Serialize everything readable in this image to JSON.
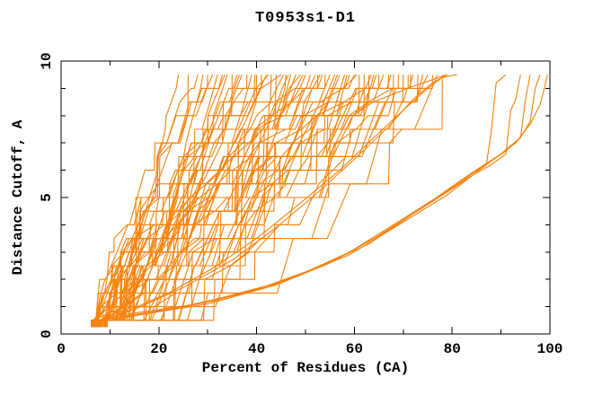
{
  "window": {
    "background": "#ffffff"
  },
  "chart_data": {
    "type": "line",
    "title": "T0953s1-D1",
    "xlabel": "Percent of Residues (CA)",
    "ylabel": "Distance Cutoff, A",
    "xlim": [
      0,
      100
    ],
    "ylim": [
      0,
      10
    ],
    "x_major_ticks": [
      0,
      20,
      40,
      60,
      80,
      100
    ],
    "x_minor_ticks": [
      10,
      30,
      50,
      70,
      90
    ],
    "y_major_ticks": [
      0,
      5,
      10
    ],
    "y_minor_ticks": [
      1,
      2,
      3,
      4,
      6,
      7,
      8,
      9
    ],
    "grid": false,
    "legend_position": "none",
    "line_color": "#f5820d",
    "axis_color": "#000000",
    "y_levels": {
      "start": 0.5,
      "end": 9.5,
      "step": 0.5
    },
    "dense_model_format": [
      "percent_at_first_cutoff",
      "percent_at_max_cutoff",
      "profile_exponent"
    ],
    "dense_models": [
      [
        6.2,
        24,
        0.6
      ],
      [
        6.8,
        26,
        1.0
      ],
      [
        7.5,
        28,
        1.5
      ],
      [
        8.1,
        29,
        0.5
      ],
      [
        8.8,
        30,
        1.2
      ],
      [
        9.4,
        31,
        1.9
      ],
      [
        6.5,
        32,
        0.75
      ],
      [
        7.1,
        33,
        1.6
      ],
      [
        7.8,
        34,
        0.55
      ],
      [
        8.4,
        35,
        1.1
      ],
      [
        9.0,
        36,
        0.85
      ],
      [
        6.9,
        37,
        1.35
      ],
      [
        6.2,
        38,
        0.6
      ],
      [
        6.8,
        39,
        1.0
      ],
      [
        7.5,
        40,
        1.5
      ],
      [
        8.1,
        41,
        0.5
      ],
      [
        8.8,
        42,
        1.2
      ],
      [
        9.4,
        43,
        1.9
      ],
      [
        6.5,
        44,
        0.75
      ],
      [
        7.1,
        45,
        1.6
      ],
      [
        7.8,
        46,
        0.55
      ],
      [
        8.4,
        47,
        1.1
      ],
      [
        9.0,
        48,
        0.85
      ],
      [
        6.9,
        49,
        1.35
      ],
      [
        6.2,
        50,
        0.6
      ],
      [
        6.8,
        51,
        1.0
      ],
      [
        7.5,
        52,
        1.5
      ],
      [
        8.1,
        53,
        0.5
      ],
      [
        8.8,
        54,
        1.2
      ],
      [
        9.4,
        55,
        1.9
      ],
      [
        6.5,
        56,
        0.75
      ],
      [
        7.1,
        57,
        1.6
      ],
      [
        7.8,
        58,
        0.55
      ],
      [
        8.4,
        59,
        1.1
      ],
      [
        9.0,
        60,
        0.85
      ],
      [
        6.9,
        61,
        1.35
      ],
      [
        6.2,
        62,
        0.6
      ],
      [
        6.8,
        63,
        1.0
      ],
      [
        7.5,
        64,
        1.5
      ],
      [
        8.1,
        65,
        0.5
      ],
      [
        8.8,
        66,
        1.2
      ],
      [
        9.4,
        67,
        1.9
      ],
      [
        6.5,
        68,
        0.75
      ],
      [
        7.1,
        69,
        1.6
      ],
      [
        7.8,
        70,
        0.55
      ],
      [
        8.4,
        71,
        1.1
      ],
      [
        9.0,
        72,
        0.85
      ],
      [
        6.9,
        73,
        1.35
      ],
      [
        6.2,
        74,
        0.6
      ],
      [
        6.8,
        75,
        1.0
      ],
      [
        7.5,
        76,
        1.5
      ],
      [
        8.1,
        77,
        0.5
      ],
      [
        8.8,
        78,
        1.2
      ],
      [
        9.4,
        79,
        1.9
      ],
      [
        6.3,
        33.5,
        0.7
      ],
      [
        7.0,
        36.5,
        1.25
      ],
      [
        7.7,
        39.5,
        0.5
      ],
      [
        8.5,
        42.5,
        1.45
      ],
      [
        9.2,
        46.5,
        0.65
      ],
      [
        6.6,
        49.5,
        1.05
      ],
      [
        7.4,
        53.5,
        1.7
      ],
      [
        8.0,
        56.5,
        0.6
      ],
      [
        8.9,
        60.5,
        1.3
      ],
      [
        6.7,
        63.5,
        0.8
      ],
      [
        7.6,
        67.5,
        1.55
      ],
      [
        8.3,
        71.5,
        0.95
      ],
      [
        6.4,
        45.5,
        0.9
      ],
      [
        7.3,
        52.5,
        1.15
      ],
      [
        8.2,
        58.5,
        0.7
      ],
      [
        9.1,
        64.5,
        1.4
      ]
    ],
    "outlier_models": [
      {
        "points": [
          [
            6.8,
            0.4
          ],
          [
            13,
            0.8
          ],
          [
            22,
            1.5
          ],
          [
            31,
            2.4
          ],
          [
            40,
            3.5
          ],
          [
            49,
            4.8
          ],
          [
            57,
            6.0
          ],
          [
            64,
            7.2
          ],
          [
            70,
            8.2
          ],
          [
            75,
            9.0
          ],
          [
            78,
            9.4
          ],
          [
            81,
            9.5
          ]
        ]
      },
      {
        "points": [
          [
            7.2,
            0.4
          ],
          [
            15,
            0.9
          ],
          [
            25,
            1.7
          ],
          [
            35,
            2.7
          ],
          [
            44,
            3.9
          ],
          [
            52,
            5.1
          ],
          [
            60,
            6.4
          ],
          [
            67,
            7.6
          ],
          [
            72,
            8.6
          ],
          [
            76,
            9.2
          ],
          [
            79,
            9.5
          ]
        ]
      },
      {
        "points": [
          [
            6.5,
            0.4
          ],
          [
            16,
            0.7
          ],
          [
            30,
            1.1
          ],
          [
            44,
            1.8
          ],
          [
            55,
            2.6
          ],
          [
            64,
            3.5
          ],
          [
            72,
            4.4
          ],
          [
            79,
            5.2
          ],
          [
            84,
            5.8
          ],
          [
            87,
            6.2
          ],
          [
            88,
            7.4
          ],
          [
            89,
            9.2
          ],
          [
            91,
            9.5
          ]
        ]
      },
      {
        "points": [
          [
            7.0,
            0.4
          ],
          [
            19,
            0.8
          ],
          [
            34,
            1.3
          ],
          [
            48,
            2.1
          ],
          [
            59,
            3.0
          ],
          [
            68,
            4.0
          ],
          [
            76,
            4.9
          ],
          [
            83,
            5.7
          ],
          [
            88,
            6.2
          ],
          [
            91,
            6.6
          ],
          [
            92,
            8.2
          ],
          [
            93,
            8.6
          ],
          [
            94,
            9.5
          ]
        ]
      },
      {
        "points": [
          [
            7.5,
            0.5
          ],
          [
            22,
            0.9
          ],
          [
            38,
            1.5
          ],
          [
            52,
            2.4
          ],
          [
            63,
            3.3
          ],
          [
            72,
            4.4
          ],
          [
            80,
            5.4
          ],
          [
            86,
            6.1
          ],
          [
            91,
            6.7
          ],
          [
            94,
            7.2
          ],
          [
            95,
            8.6
          ],
          [
            96,
            9.5
          ]
        ]
      },
      {
        "points": [
          [
            8.0,
            0.5
          ],
          [
            25,
            1.0
          ],
          [
            42,
            1.7
          ],
          [
            56,
            2.7
          ],
          [
            67,
            3.8
          ],
          [
            76,
            4.9
          ],
          [
            84,
            5.9
          ],
          [
            90,
            6.6
          ],
          [
            94,
            7.2
          ],
          [
            96,
            7.8
          ],
          [
            97,
            9.0
          ],
          [
            98,
            9.5
          ]
        ]
      },
      {
        "points": [
          [
            8.5,
            0.6
          ],
          [
            28,
            1.1
          ],
          [
            45,
            1.9
          ],
          [
            59,
            2.9
          ],
          [
            70,
            4.1
          ],
          [
            79,
            5.1
          ],
          [
            87,
            6.2
          ],
          [
            93,
            7.0
          ],
          [
            96,
            7.7
          ],
          [
            98,
            8.4
          ],
          [
            99,
            9.1
          ],
          [
            99.5,
            9.5
          ]
        ]
      }
    ]
  }
}
